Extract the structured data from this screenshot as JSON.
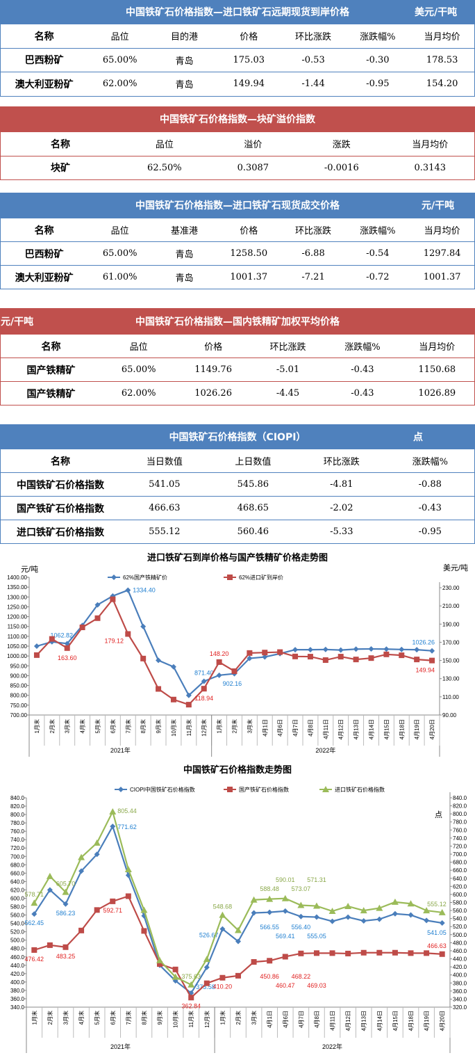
{
  "tables": [
    {
      "title": "中国铁矿石价格指数—进口铁矿石远期现货到岸价格",
      "unit": "美元/干吨",
      "color": "#4f81bd",
      "headers": [
        "名称",
        "品位",
        "目的港",
        "价格",
        "环比涨跌",
        "涨跌幅%",
        "当月均价"
      ],
      "rows": [
        [
          "巴西粉矿",
          "65.00%",
          "青岛",
          "175.03",
          "-0.53",
          "-0.30",
          "178.53"
        ],
        [
          "澳大利亚粉矿",
          "62.00%",
          "青岛",
          "149.94",
          "-1.44",
          "-0.95",
          "154.20"
        ]
      ]
    },
    {
      "title": "中国铁矿石价格指数—块矿溢价指数",
      "unit": "",
      "color": "#c0504d",
      "headers": [
        "名称",
        "品位",
        "溢价",
        "涨跌",
        "当月均价"
      ],
      "rows": [
        [
          "块矿",
          "62.50%",
          "0.3087",
          "-0.0016",
          "0.3143"
        ]
      ]
    },
    {
      "title": "中国铁矿石价格指数—进口铁矿石现货成交价格",
      "unit": "元/干吨",
      "color": "#4f81bd",
      "headers": [
        "名称",
        "品位",
        "基准港",
        "价格",
        "环比涨跌",
        "涨跌幅%",
        "当月均价"
      ],
      "rows": [
        [
          "巴西粉矿",
          "65.00%",
          "青岛",
          "1258.50",
          "-6.88",
          "-0.54",
          "1297.84"
        ],
        [
          "澳大利亚粉矿",
          "61.00%",
          "青岛",
          "1001.37",
          "-7.21",
          "-0.72",
          "1001.37"
        ]
      ]
    },
    {
      "title": "中国铁矿石价格指数—国内铁精矿加权平均价格",
      "unit": "元/干吨",
      "color": "#c0504d",
      "headers": [
        "名称",
        "品位",
        "价格",
        "环比涨跌",
        "涨跌幅%",
        "当月均价"
      ],
      "rows": [
        [
          "国产铁精矿",
          "65.00%",
          "1149.76",
          "-5.01",
          "-0.43",
          "1150.68"
        ],
        [
          "国产铁精矿",
          "62.00%",
          "1026.26",
          "-4.45",
          "-0.43",
          "1026.89"
        ]
      ]
    },
    {
      "title": "中国铁矿石价格指数（CIOPI）",
      "unit": "点",
      "color": "#4f81bd",
      "headers": [
        "名称",
        "当日数值",
        "上日数值",
        "环比涨跌",
        "涨跌幅%"
      ],
      "rows": [
        [
          "中国铁矿石价格指数",
          "541.05",
          "545.86",
          "-4.81",
          "-0.88"
        ],
        [
          "国产铁矿石价格指数",
          "466.63",
          "468.65",
          "-2.02",
          "-0.43"
        ],
        [
          "进口铁矿石价格指数",
          "555.12",
          "560.46",
          "-5.33",
          "-0.95"
        ]
      ]
    }
  ],
  "chart_data": [
    {
      "type": "line",
      "title": "进口铁矿石到岸价格与国产铁精矿价格走势图",
      "ylabel": "元/吨",
      "y2label": "美元/吨",
      "ylim": [
        700,
        1400
      ],
      "yticks_step": 50,
      "y2lim": [
        90,
        230
      ],
      "y2ticks_step": 20,
      "y_decimals": 2,
      "categories": [
        "1月末",
        "2月末",
        "3月末",
        "4月末",
        "5月末",
        "6月末",
        "7月末",
        "8月末",
        "9月末",
        "10月末",
        "11月末",
        "12月末",
        "1月末",
        "2月末",
        "3月末",
        "4月1日",
        "4月6日",
        "4月7日",
        "4月8日",
        "4月11日",
        "4月12日",
        "4月13日",
        "4月14日",
        "4月15日",
        "4月18日",
        "4月19日",
        "4月20日"
      ],
      "groups": [
        {
          "label": "2021年",
          "count": 12
        },
        {
          "label": "2022年",
          "count": 15
        }
      ],
      "legend": "top",
      "grid": false,
      "series": [
        {
          "name": "62%国产铁精矿价",
          "axis": "left",
          "color": "#4a7ebb",
          "marker": "diamond",
          "values": [
            1050,
            1072,
            1062.82,
            1155,
            1260,
            1305,
            1334.4,
            1150,
            978,
            945,
            800,
            871.4,
            902.16,
            910,
            988,
            995,
            1012,
            1032,
            1032,
            1033,
            1030,
            1035,
            1036,
            1035,
            1033,
            1032,
            1026.26
          ],
          "labels": {
            "2": "1062.82",
            "6": "1334.40",
            "11": "871.40",
            "12": "902.16",
            "26": "1026.26"
          },
          "label_color": "#1f7fd0"
        },
        {
          "name": "62%进口矿到岸价",
          "axis": "right",
          "color": "#be4b48",
          "marker": "square",
          "values": [
            155.9,
            173.7,
            163.6,
            186.4,
            196.5,
            217.3,
            179.12,
            152.1,
            118.7,
            107,
            101.4,
            118.94,
            148.2,
            138.2,
            158.2,
            158.7,
            159.2,
            154.4,
            154.2,
            150.4,
            154.2,
            151.1,
            152.6,
            156.7,
            155.7,
            151.1,
            149.94
          ],
          "labels": {
            "2": "163.60",
            "6": "179.12",
            "11": "118.94",
            "12": "148.20",
            "26": "149.94"
          },
          "label_color": "#e02020"
        }
      ]
    },
    {
      "type": "line",
      "title": "中国铁矿石价格指数走势图",
      "y2label": "点",
      "ylim": [
        340,
        840
      ],
      "yticks_step": 20,
      "y2lim": [
        320,
        840
      ],
      "y2ticks_step": 20,
      "y_decimals": 1,
      "categories": [
        "1月末",
        "2月末",
        "3月末",
        "4月末",
        "5月末",
        "6月末",
        "7月末",
        "8月末",
        "9月末",
        "10月末",
        "11月末",
        "12月末",
        "1月末",
        "2月末",
        "3月末",
        "4月1日",
        "4月6日",
        "4月7日",
        "4月8日",
        "4月11日",
        "4月12日",
        "4月13日",
        "4月14日",
        "4月15日",
        "4月18日",
        "4月19日",
        "4月20日"
      ],
      "groups": [
        {
          "label": "2021年",
          "count": 12
        },
        {
          "label": "2022年",
          "count": 15
        }
      ],
      "legend": "top",
      "grid": false,
      "series": [
        {
          "name": "CIOPI中国铁矿石价格指数",
          "axis": "left",
          "color": "#4a7ebb",
          "marker": "diamond",
          "values": [
            562.45,
            620,
            586.23,
            665,
            705,
            771.62,
            655,
            558,
            440,
            403,
            373.58,
            435,
            526.67,
            497,
            565,
            566.55,
            569.41,
            556.4,
            555.05,
            545,
            555,
            546,
            550,
            563,
            560,
            547,
            541.05
          ],
          "labels": {
            "0": "562.45",
            "2": "586.23",
            "5": "771.62",
            "10": "373.58",
            "12": "526.67",
            "15": "566.55",
            "16": "569.41",
            "17": "556.40",
            "18": "555.05",
            "26": "541.05"
          },
          "label_color": "#1f7fd0"
        },
        {
          "name": "国产铁矿石价格指数",
          "axis": "left",
          "color": "#be4b48",
          "marker": "square",
          "values": [
            476.42,
            488,
            483.25,
            523,
            572,
            592.71,
            605,
            522,
            443,
            430,
            362.84,
            397,
            410.2,
            415,
            448,
            450.86,
            460.47,
            468.22,
            469.03,
            469,
            468,
            470,
            470,
            470,
            469,
            469,
            466.63
          ],
          "labels": {
            "0": "476.42",
            "2": "483.25",
            "5": "592.71",
            "10": "362.84",
            "12": "410.20",
            "15": "450.86",
            "16": "460.47",
            "17": "468.22",
            "18": "469.03",
            "26": "466.63"
          },
          "label_color": "#e02020"
        },
        {
          "name": "进口铁矿石价格指数",
          "axis": "right",
          "color": "#9bbb59",
          "marker": "triangle",
          "values": [
            578.71,
            645,
            605.7,
            692,
            728,
            805.44,
            662,
            561,
            436,
            395,
            375.63,
            439,
            548.68,
            511,
            586.5,
            588.48,
            590.01,
            573.07,
            571.31,
            558.4,
            570.5,
            560,
            566,
            581,
            577,
            560,
            555.12
          ],
          "labels": {
            "0": "578.71",
            "2": "605.70",
            "5": "805.44",
            "10": "375.63",
            "12": "548.68",
            "15": "588.48",
            "16": "590.01",
            "17": "573.07",
            "18": "571.31",
            "26": "555.12"
          },
          "label_color": "#8aa84a"
        }
      ]
    }
  ]
}
